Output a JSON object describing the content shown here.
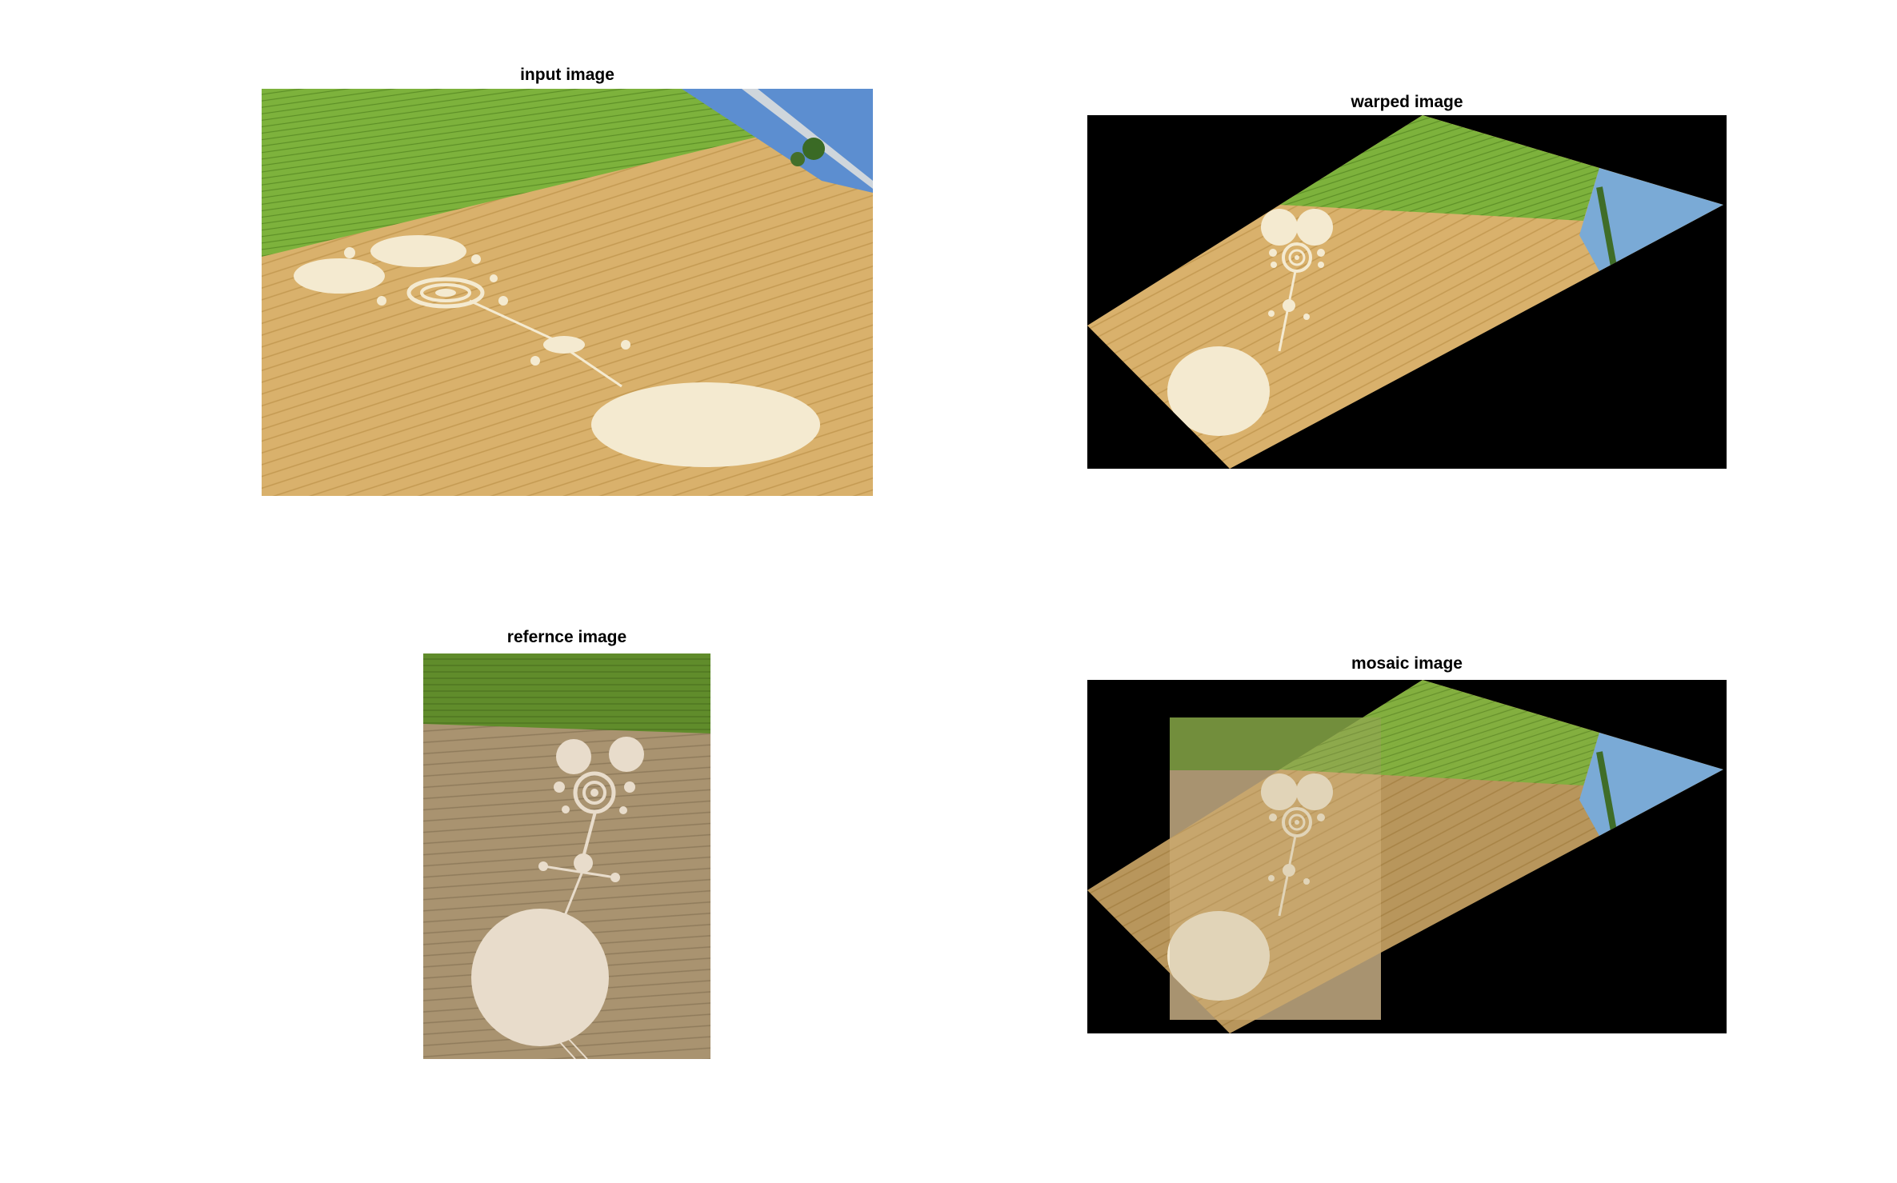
{
  "figure": {
    "panels": [
      {
        "id": "input",
        "title": "input image"
      },
      {
        "id": "warped",
        "title": "warped image"
      },
      {
        "id": "ref",
        "title": "refernce image"
      },
      {
        "id": "mosaic",
        "title": "mosaic image"
      }
    ]
  },
  "colors": {
    "wheat": "#d8b06a",
    "wheat_dark": "#c79a55",
    "grass": "#7cae3a",
    "grass_dark": "#5e8f2a",
    "crop_circle": "#f4ead0",
    "ref_field": "#a89270",
    "ref_grass": "#5f8a2a",
    "background": "#000000"
  }
}
